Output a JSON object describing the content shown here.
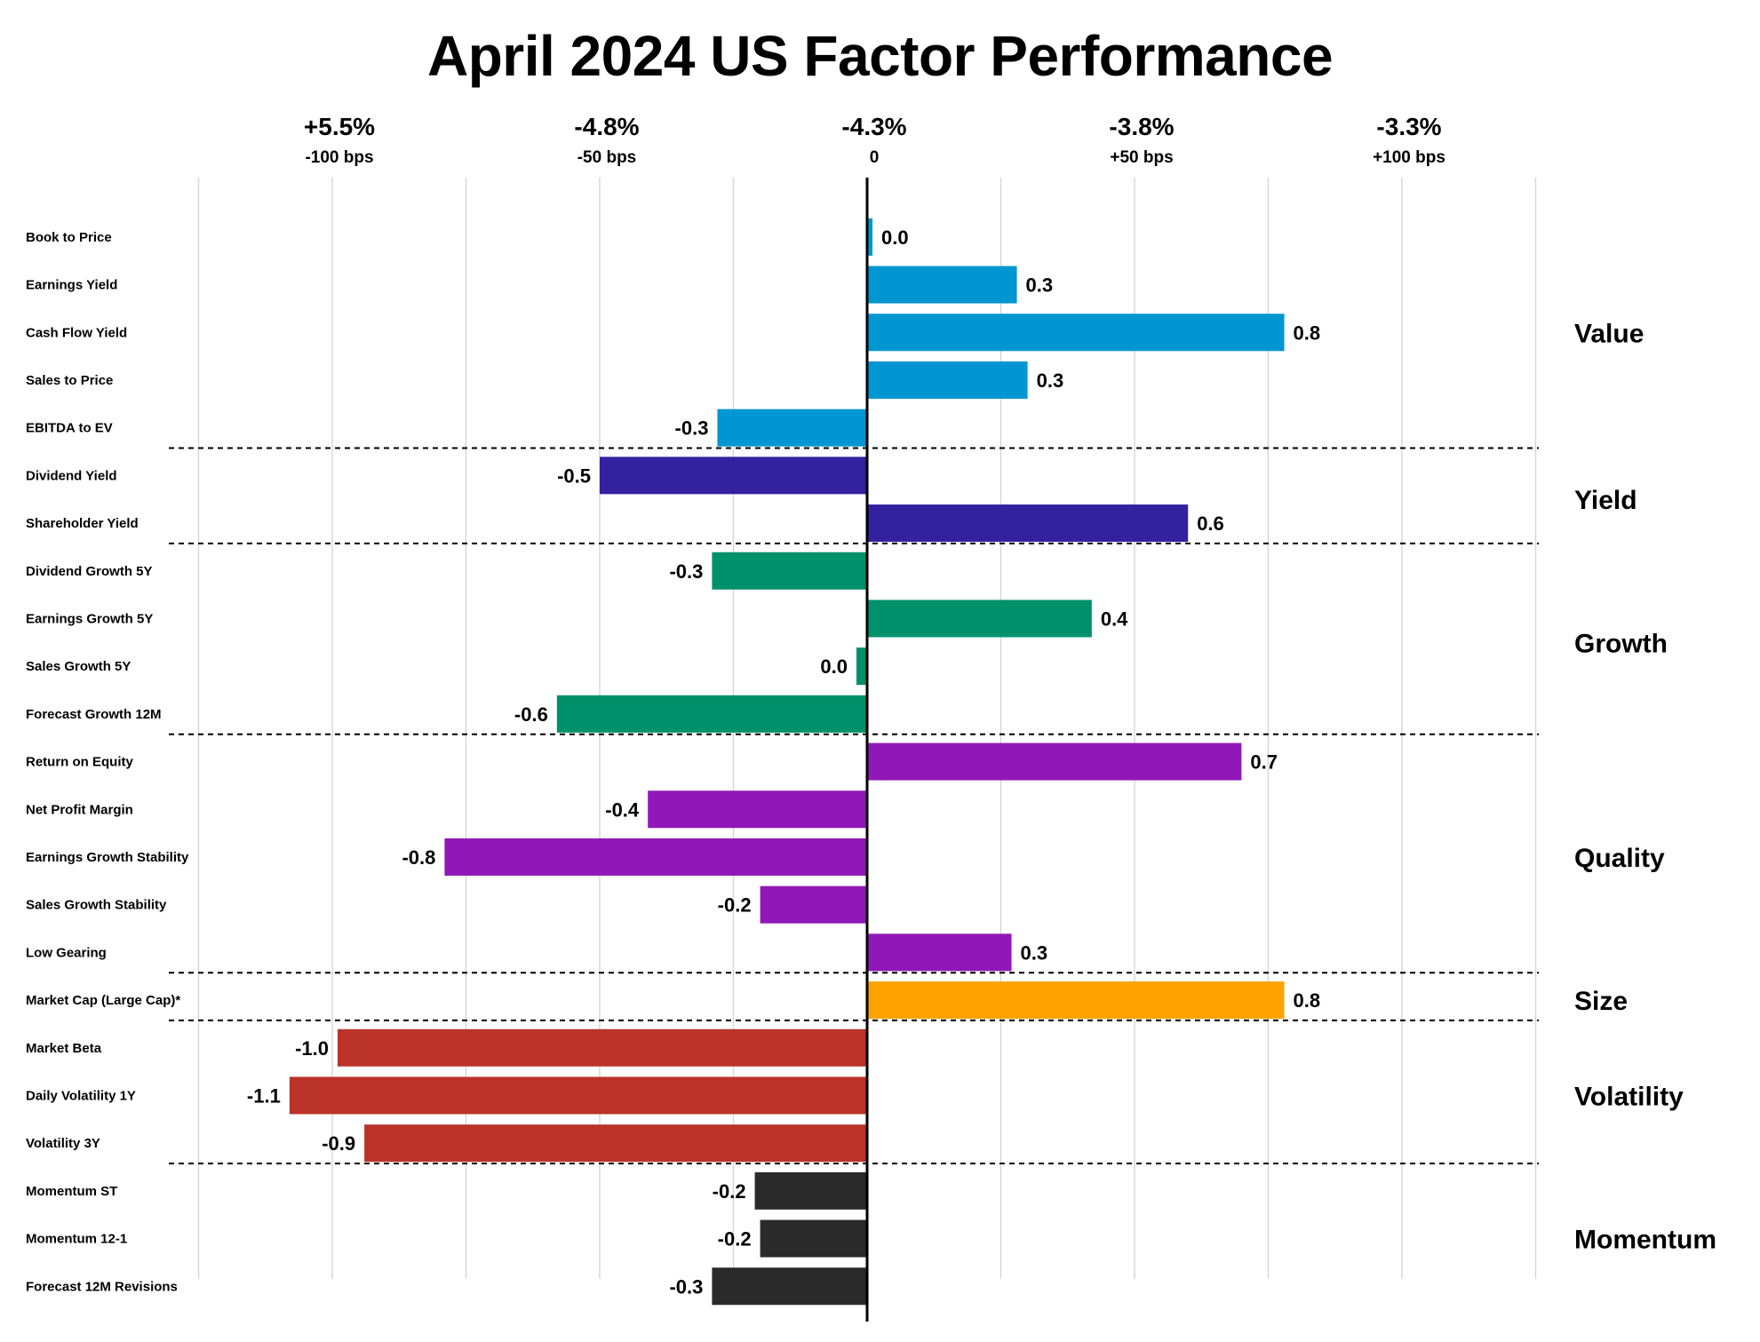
{
  "title": "April 2024 US Factor Performance",
  "colors": {
    "Value": "#0096d1",
    "Yield": "#3421a0",
    "Growth": "#00916a",
    "Quality": "#9118b8",
    "Size": "#ffa300",
    "Volatility": "#bb3328",
    "Momentum": "#2a2a2a",
    "gridline": "#d6d6d6",
    "axis": "#000000"
  },
  "chart_data": {
    "type": "bar",
    "orientation": "horizontal",
    "title": "April 2024 US Factor Performance",
    "x_ticks_top": [
      "+5.5%",
      "-4.8%",
      "-4.3%",
      "-3.8%",
      "-3.3%"
    ],
    "x_ticks": [
      "-100 bps",
      "-50 bps",
      "0",
      "+50 bps",
      "+100 bps"
    ],
    "x_tick_values": [
      -100,
      -50,
      0,
      50,
      100
    ],
    "xlim": [
      -125,
      125
    ],
    "grid": true,
    "legend": "none",
    "categories": [
      "Book to Price",
      "Earnings Yield",
      "Cash Flow Yield",
      "Sales to Price",
      "EBITDA to EV",
      "Dividend Yield",
      "Shareholder Yield",
      "Dividend Growth 5Y",
      "Earnings Growth 5Y",
      "Sales Growth 5Y",
      "Forecast Growth 12M",
      "Return on Equity",
      "Net Profit Margin",
      "Earnings Growth Stability",
      "Sales Growth Stability",
      "Low Gearing",
      "Market Cap (Large Cap)*",
      "Market Beta",
      "Daily Volatility 1Y",
      "Volatility 3Y",
      "Momentum ST",
      "Momentum 12-1",
      "Forecast 12M Revisions"
    ],
    "values": [
      1,
      28,
      78,
      30,
      -28,
      -50,
      60,
      -29,
      42,
      -2,
      -58,
      70,
      -41,
      -79,
      -20,
      27,
      78,
      -99,
      -108,
      -94,
      -21,
      -20,
      -29
    ],
    "value_labels": [
      "0.0",
      "0.3",
      "0.8",
      "0.3",
      "-0.3",
      "-0.5",
      "0.6",
      "-0.3",
      "0.4",
      "0.0",
      "-0.6",
      "0.7",
      "-0.4",
      "-0.8",
      "-0.2",
      "0.3",
      "0.8",
      "-1.0",
      "-1.1",
      "-0.9",
      "-0.2",
      "-0.2",
      "-0.3"
    ],
    "groups": [
      {
        "name": "Value",
        "start": 0,
        "end": 4
      },
      {
        "name": "Yield",
        "start": 5,
        "end": 6
      },
      {
        "name": "Growth",
        "start": 7,
        "end": 10
      },
      {
        "name": "Quality",
        "start": 11,
        "end": 15
      },
      {
        "name": "Size",
        "start": 16,
        "end": 16
      },
      {
        "name": "Volatility",
        "start": 17,
        "end": 19
      },
      {
        "name": "Momentum",
        "start": 20,
        "end": 22
      }
    ]
  }
}
